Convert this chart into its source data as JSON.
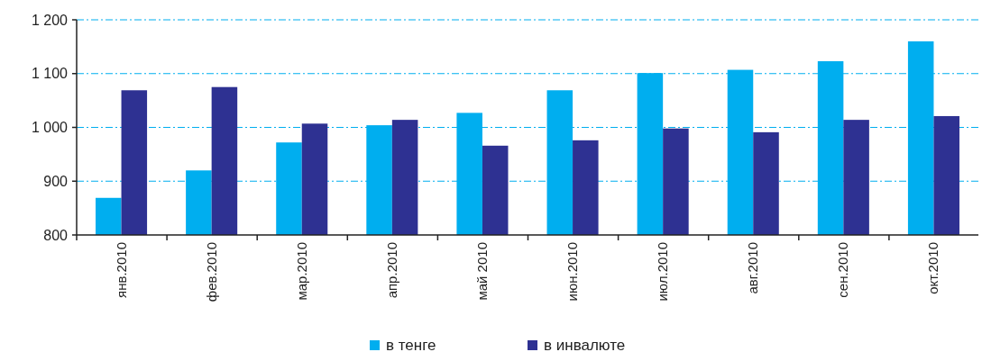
{
  "chart_data": {
    "type": "bar",
    "categories": [
      "янв.2010",
      "фев.2010",
      "мар.2010",
      "апр.2010",
      "май 2010",
      "июн.2010",
      "июл.2010",
      "авг.2010",
      "сен.2010",
      "окт.2010"
    ],
    "series": [
      {
        "name": "в тенге",
        "color": "#00aeef",
        "values": [
          869,
          920,
          972,
          1004,
          1027,
          1069,
          1101,
          1107,
          1123,
          1160
        ]
      },
      {
        "name": "в инвалюте",
        "color": "#2e3192",
        "values": [
          1069,
          1075,
          1007,
          1014,
          966,
          976,
          998,
          991,
          1014,
          1021
        ]
      }
    ],
    "ylim": [
      800,
      1200
    ],
    "yticks": [
      800,
      900,
      {
        "value": 1000,
        "label": "1 000"
      },
      {
        "value": 1100,
        "label": "1 100"
      },
      {
        "value": 1200,
        "label": "1 200"
      }
    ],
    "grid": "y",
    "legend": "bottom"
  }
}
